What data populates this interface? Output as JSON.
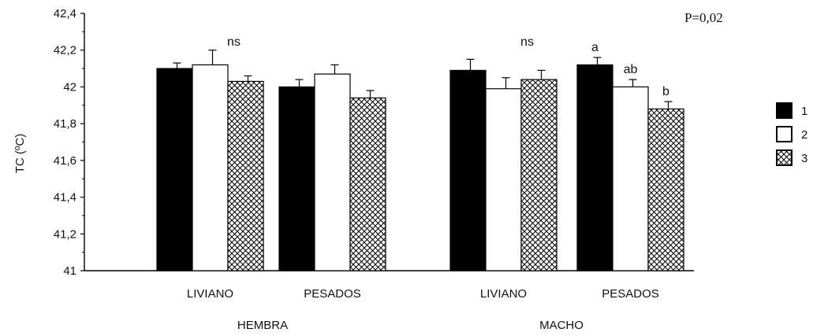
{
  "chart_data": {
    "type": "bar",
    "ylabel": "TC (ºC)",
    "ylim": [
      41,
      42.4
    ],
    "yticks": [
      "42,4",
      "42,2",
      "42",
      "41,8",
      "41,6",
      "41,4",
      "41,2",
      "41"
    ],
    "ytick_values": [
      42.4,
      42.2,
      42.0,
      41.8,
      41.6,
      41.4,
      41.2,
      41.0
    ],
    "p_value_label": "P=0,02",
    "groups": [
      {
        "label": "HEMBRA",
        "subgroups": [
          {
            "label": "LIVIANO",
            "values": [
              42.1,
              42.12,
              42.03
            ],
            "errors": [
              0.03,
              0.08,
              0.03
            ],
            "annotation": "ns",
            "bar_labels": [
              "",
              "",
              ""
            ]
          },
          {
            "label": "PESADOS",
            "values": [
              42.0,
              42.07,
              41.94
            ],
            "errors": [
              0.04,
              0.05,
              0.04
            ],
            "annotation": "",
            "bar_labels": [
              "",
              "",
              ""
            ]
          }
        ]
      },
      {
        "label": "MACHO",
        "subgroups": [
          {
            "label": "LIVIANO",
            "values": [
              42.09,
              41.99,
              42.04
            ],
            "errors": [
              0.06,
              0.06,
              0.05
            ],
            "annotation": "ns",
            "bar_labels": [
              "",
              "",
              ""
            ]
          },
          {
            "label": "PESADOS",
            "values": [
              42.12,
              42.0,
              41.88
            ],
            "errors": [
              0.04,
              0.04,
              0.04
            ],
            "annotation": "",
            "bar_labels": [
              "a",
              "ab",
              "b"
            ]
          }
        ]
      }
    ],
    "series": [
      {
        "name": "1",
        "fill": "solid-black"
      },
      {
        "name": "2",
        "fill": "white"
      },
      {
        "name": "3",
        "fill": "crosshatch"
      }
    ],
    "legend_position": "right",
    "grid": false
  }
}
